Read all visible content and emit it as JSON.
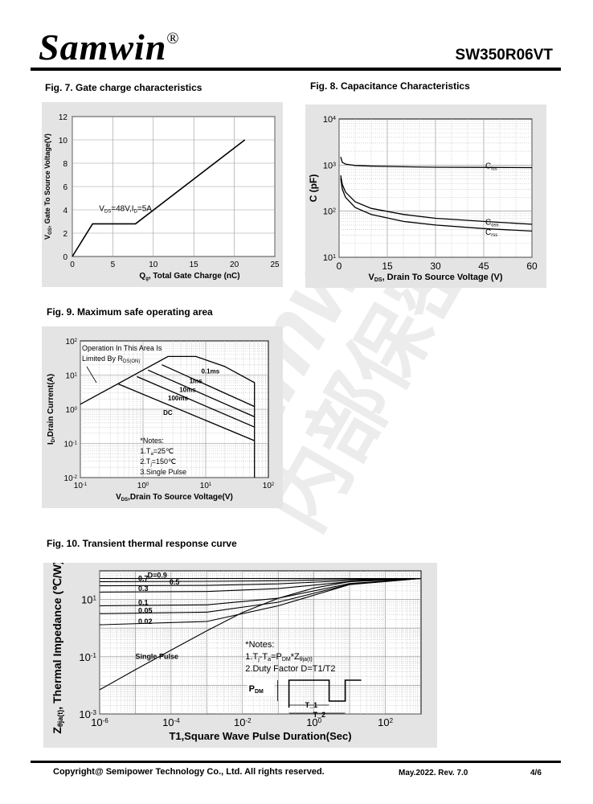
{
  "header": {
    "logo": "Samwin",
    "logo_mark": "®",
    "part_number": "SW350R06VT"
  },
  "figures": {
    "fig7": {
      "title": "Fig. 7. Gate charge characteristics",
      "annotation": "V_DS=48V,I_D=5A",
      "chart_data": {
        "type": "line",
        "xlabel": "Q_g, Total Gate Charge (nC)",
        "ylabel": "V_GS, Gate To Source Voltage(V)",
        "xlim": [
          0,
          25
        ],
        "ylim": [
          0,
          12
        ],
        "xticks": [
          "0",
          "5",
          "10",
          "15",
          "20",
          "25"
        ],
        "yticks": [
          "0",
          "2",
          "4",
          "6",
          "8",
          "10",
          "12"
        ],
        "grid": true,
        "series": [
          {
            "x": [
              0,
              2.5,
              7.8,
              21.3
            ],
            "y": [
              0,
              2.8,
              2.8,
              10.0
            ]
          }
        ]
      }
    },
    "fig8": {
      "title": "Fig. 8. Capacitance Characteristics",
      "chart_data": {
        "type": "line",
        "xlabel": "V_DS, Drain To Source Voltage (V)",
        "ylabel": "C (pF)",
        "xlim": [
          0,
          60
        ],
        "ylim": [
          10,
          10000
        ],
        "yscale": "log",
        "xticks": [
          "0",
          "15",
          "30",
          "45",
          "60"
        ],
        "yticks": [
          "10^1",
          "10^2",
          "10^3",
          "10^4"
        ],
        "grid": true,
        "series": [
          {
            "name": "Ciss",
            "x": [
              0.5,
              1,
              2,
              5,
              10,
              20,
              30,
              45,
              60
            ],
            "y": [
              1500,
              1150,
              1050,
              980,
              950,
              920,
              900,
              890,
              880
            ]
          },
          {
            "name": "Coss",
            "x": [
              0.5,
              1,
              2,
              5,
              10,
              20,
              30,
              45,
              60
            ],
            "y": [
              600,
              380,
              260,
              160,
              115,
              85,
              70,
              60,
              52
            ]
          },
          {
            "name": "Crss",
            "x": [
              0.5,
              1,
              2,
              5,
              10,
              20,
              30,
              45,
              60
            ],
            "y": [
              520,
              300,
              200,
              120,
              85,
              60,
              50,
              42,
              37
            ]
          }
        ]
      }
    },
    "fig9": {
      "title": "Fig. 9. Maximum safe operating area",
      "annotations": {
        "region_line1": "Operation In This Area Is",
        "region_line2": "Limited By R_DS(ON)",
        "notes_title": "*Notes:",
        "note1": "1.T_a=25℃",
        "note2": "2.T_j=150℃",
        "note3": "3.Single Pulse"
      },
      "chart_data": {
        "type": "line",
        "xlabel": "V_DS,Drain To Source Voltage(V)",
        "ylabel": "I_D,Drain Current(A)",
        "xlim": [
          0.1,
          100
        ],
        "ylim": [
          0.01,
          100
        ],
        "xscale": "log",
        "yscale": "log",
        "xticks": [
          "10^-1",
          "10^0",
          "10^1",
          "10^2"
        ],
        "yticks": [
          "10^-2",
          "10^-1",
          "10^0",
          "10^1",
          "10^2"
        ],
        "grid": true,
        "series": [
          {
            "name": "0.1ms",
            "x": [
              0.1,
              2.5,
              7,
              20,
              60,
              60
            ],
            "y": [
              1.4,
              35,
              35,
              18,
              6,
              0.01
            ]
          },
          {
            "name": "1ms",
            "x": [
              2,
              60
            ],
            "y": [
              20,
              1.2
            ]
          },
          {
            "name": "10ms",
            "x": [
              1.2,
              60
            ],
            "y": [
              14,
              0.6
            ]
          },
          {
            "name": "100ms",
            "x": [
              0.8,
              60
            ],
            "y": [
              9,
              0.3
            ]
          },
          {
            "name": "DC",
            "x": [
              0.4,
              60
            ],
            "y": [
              5.5,
              0.12
            ]
          }
        ]
      }
    },
    "fig10": {
      "title": "Fig. 10. Transient thermal response curve",
      "annotations": {
        "notes_title": "*Notes:",
        "note1": "1.T_j-T_a=P_DM*Z_θja(t)",
        "note2": "2.Duty Factor D=T1/T2",
        "pdm_label": "P_DM",
        "t1_label": "T1",
        "t2_label": "T2",
        "single_pulse": "Single Pulse"
      },
      "chart_data": {
        "type": "line",
        "xlabel": "T1,Square Wave Pulse Duration(Sec)",
        "ylabel": "Z_θja(t), Thermal Impedance (℃/W)",
        "xlim": [
          1e-06,
          1000
        ],
        "ylim": [
          0.001,
          100
        ],
        "xscale": "log",
        "yscale": "log",
        "xticks": [
          "10^-6",
          "10^-4",
          "10^-2",
          "10^0",
          "10^2"
        ],
        "yticks": [
          "10^-3",
          "10^-1",
          "10^1"
        ],
        "grid": true,
        "series": [
          {
            "name": "D=0.9",
            "x": [
              1e-06,
              1000
            ],
            "y": [
              54,
              54
            ]
          },
          {
            "name": "0.7",
            "x": [
              1e-06,
              0.001,
              0.1,
              10,
              1000
            ],
            "y": [
              42,
              43,
              45,
              50,
              54
            ]
          },
          {
            "name": "0.5",
            "x": [
              1e-06,
              0.001,
              0.1,
              10,
              1000
            ],
            "y": [
              30,
              31,
              35,
              46,
              54
            ]
          },
          {
            "name": "0.3",
            "x": [
              1e-06,
              0.001,
              0.1,
              10,
              1000
            ],
            "y": [
              18,
              19,
              24,
              42,
              54
            ]
          },
          {
            "name": "0.1",
            "x": [
              1e-06,
              0.001,
              0.1,
              10,
              1000
            ],
            "y": [
              6,
              6.5,
              11,
              36,
              54
            ]
          },
          {
            "name": "0.05",
            "x": [
              1e-06,
              0.001,
              0.1,
              10,
              1000
            ],
            "y": [
              3.2,
              3.6,
              8,
              34,
              54
            ]
          },
          {
            "name": "0.02",
            "x": [
              1e-06,
              0.001,
              0.1,
              10,
              1000
            ],
            "y": [
              1.3,
              1.7,
              6,
              33,
              54
            ]
          },
          {
            "name": "Single Pulse",
            "x": [
              1e-06,
              1e-05,
              0.0001,
              0.001,
              0.01,
              0.1,
              1,
              10,
              100,
              1000
            ],
            "y": [
              0.007,
              0.035,
              0.17,
              0.8,
              3.5,
              11,
              25,
              42,
              52,
              54
            ]
          }
        ]
      }
    }
  },
  "footer": {
    "copyright": "Copyright@ Semipower Technology Co., Ltd. All rights reserved.",
    "revision": "May.2022. Rev. 7.0",
    "page": "4/6"
  }
}
